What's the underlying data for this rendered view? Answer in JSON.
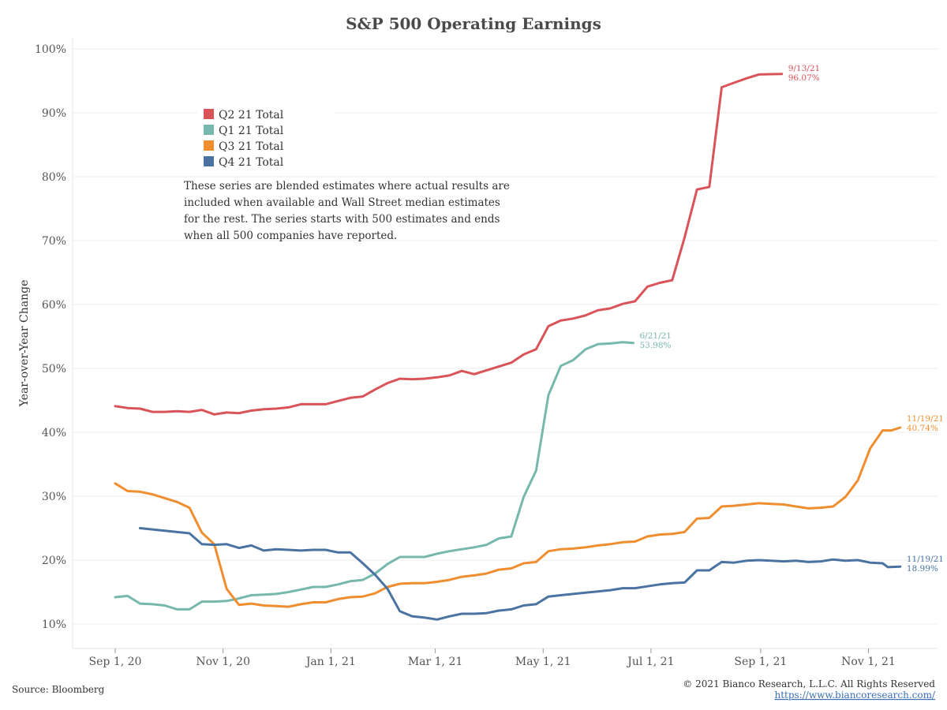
{
  "chart_data": {
    "type": "line",
    "title": "S&P 500 Operating Earnings",
    "ylabel": "Year-over-Year Change",
    "xlabel": "",
    "ylim": [
      6,
      102
    ],
    "x_ticks": [
      "Sep 1, 20",
      "Nov 1, 20",
      "Jan 1, 21",
      "Mar 1, 21",
      "May 1, 21",
      "Jul 1, 21",
      "Sep 1, 21",
      "Nov 1, 21"
    ],
    "y_ticks": [
      "10%",
      "20%",
      "30%",
      "40%",
      "50%",
      "60%",
      "70%",
      "80%",
      "90%",
      "100%"
    ],
    "grid": "horizontal",
    "legend_position": "top-left",
    "series": [
      {
        "name": "Q2 21 Total",
        "color": "#d95358",
        "end_label_date": "9/13/21",
        "end_label_value": "96.07%",
        "points": [
          [
            "2020-09-01",
            44.1
          ],
          [
            "2020-09-08",
            43.8
          ],
          [
            "2020-09-15",
            43.7
          ],
          [
            "2020-09-22",
            43.2
          ],
          [
            "2020-09-29",
            43.2
          ],
          [
            "2020-10-06",
            43.3
          ],
          [
            "2020-10-13",
            43.2
          ],
          [
            "2020-10-20",
            43.5
          ],
          [
            "2020-10-27",
            42.8
          ],
          [
            "2020-11-03",
            43.1
          ],
          [
            "2020-11-10",
            43.0
          ],
          [
            "2020-11-17",
            43.4
          ],
          [
            "2020-11-24",
            43.6
          ],
          [
            "2020-12-01",
            43.7
          ],
          [
            "2020-12-08",
            43.9
          ],
          [
            "2020-12-15",
            44.4
          ],
          [
            "2020-12-22",
            44.4
          ],
          [
            "2020-12-29",
            44.4
          ],
          [
            "2021-01-05",
            44.9
          ],
          [
            "2021-01-12",
            45.4
          ],
          [
            "2021-01-19",
            45.6
          ],
          [
            "2021-01-26",
            46.7
          ],
          [
            "2021-02-02",
            47.7
          ],
          [
            "2021-02-09",
            48.4
          ],
          [
            "2021-02-16",
            48.3
          ],
          [
            "2021-02-23",
            48.4
          ],
          [
            "2021-03-02",
            48.6
          ],
          [
            "2021-03-09",
            48.9
          ],
          [
            "2021-03-16",
            49.6
          ],
          [
            "2021-03-23",
            49.1
          ],
          [
            "2021-03-30",
            49.7
          ],
          [
            "2021-04-06",
            50.3
          ],
          [
            "2021-04-13",
            50.9
          ],
          [
            "2021-04-20",
            52.2
          ],
          [
            "2021-04-27",
            53.0
          ],
          [
            "2021-05-04",
            56.6
          ],
          [
            "2021-05-11",
            57.5
          ],
          [
            "2021-05-18",
            57.8
          ],
          [
            "2021-05-25",
            58.3
          ],
          [
            "2021-06-01",
            59.1
          ],
          [
            "2021-06-08",
            59.4
          ],
          [
            "2021-06-15",
            60.1
          ],
          [
            "2021-06-22",
            60.5
          ],
          [
            "2021-06-29",
            62.8
          ],
          [
            "2021-07-06",
            63.4
          ],
          [
            "2021-07-13",
            63.8
          ],
          [
            "2021-07-20",
            70.5
          ],
          [
            "2021-07-27",
            78.0
          ],
          [
            "2021-08-03",
            78.4
          ],
          [
            "2021-08-10",
            94.0
          ],
          [
            "2021-08-17",
            94.7
          ],
          [
            "2021-08-24",
            95.4
          ],
          [
            "2021-08-31",
            96.0
          ],
          [
            "2021-09-07",
            96.05
          ],
          [
            "2021-09-13",
            96.07
          ]
        ]
      },
      {
        "name": "Q1 21 Total",
        "color": "#76b7ae",
        "end_label_date": "6/21/21",
        "end_label_value": "53.98%",
        "points": [
          [
            "2020-09-01",
            14.2
          ],
          [
            "2020-09-08",
            14.4
          ],
          [
            "2020-09-15",
            13.2
          ],
          [
            "2020-09-22",
            13.1
          ],
          [
            "2020-09-29",
            12.9
          ],
          [
            "2020-10-06",
            12.3
          ],
          [
            "2020-10-13",
            12.3
          ],
          [
            "2020-10-20",
            13.5
          ],
          [
            "2020-10-27",
            13.5
          ],
          [
            "2020-11-03",
            13.6
          ],
          [
            "2020-11-10",
            14.0
          ],
          [
            "2020-11-17",
            14.5
          ],
          [
            "2020-11-24",
            14.6
          ],
          [
            "2020-12-01",
            14.7
          ],
          [
            "2020-12-08",
            15.0
          ],
          [
            "2020-12-15",
            15.4
          ],
          [
            "2020-12-22",
            15.8
          ],
          [
            "2020-12-29",
            15.8
          ],
          [
            "2021-01-05",
            16.2
          ],
          [
            "2021-01-12",
            16.7
          ],
          [
            "2021-01-19",
            16.9
          ],
          [
            "2021-01-26",
            17.9
          ],
          [
            "2021-02-02",
            19.4
          ],
          [
            "2021-02-09",
            20.5
          ],
          [
            "2021-02-16",
            20.5
          ],
          [
            "2021-02-23",
            20.5
          ],
          [
            "2021-03-02",
            21.0
          ],
          [
            "2021-03-09",
            21.4
          ],
          [
            "2021-03-16",
            21.7
          ],
          [
            "2021-03-23",
            22.0
          ],
          [
            "2021-03-30",
            22.4
          ],
          [
            "2021-04-06",
            23.4
          ],
          [
            "2021-04-13",
            23.7
          ],
          [
            "2021-04-20",
            29.9
          ],
          [
            "2021-04-27",
            34.0
          ],
          [
            "2021-05-04",
            45.8
          ],
          [
            "2021-05-11",
            50.4
          ],
          [
            "2021-05-18",
            51.3
          ],
          [
            "2021-05-25",
            53.0
          ],
          [
            "2021-06-01",
            53.8
          ],
          [
            "2021-06-08",
            53.9
          ],
          [
            "2021-06-15",
            54.1
          ],
          [
            "2021-06-21",
            53.98
          ]
        ]
      },
      {
        "name": "Q3 21 Total",
        "color": "#f08e2f",
        "end_label_date": "11/19/21",
        "end_label_value": "40.74%",
        "points": [
          [
            "2020-09-01",
            32.0
          ],
          [
            "2020-09-08",
            30.8
          ],
          [
            "2020-09-15",
            30.7
          ],
          [
            "2020-09-22",
            30.3
          ],
          [
            "2020-09-29",
            29.7
          ],
          [
            "2020-10-06",
            29.1
          ],
          [
            "2020-10-13",
            28.2
          ],
          [
            "2020-10-20",
            24.3
          ],
          [
            "2020-10-27",
            22.5
          ],
          [
            "2020-11-03",
            15.5
          ],
          [
            "2020-11-10",
            13.0
          ],
          [
            "2020-11-17",
            13.2
          ],
          [
            "2020-11-24",
            12.9
          ],
          [
            "2020-12-01",
            12.8
          ],
          [
            "2020-12-08",
            12.7
          ],
          [
            "2020-12-15",
            13.1
          ],
          [
            "2020-12-22",
            13.4
          ],
          [
            "2020-12-29",
            13.4
          ],
          [
            "2021-01-05",
            13.9
          ],
          [
            "2021-01-12",
            14.2
          ],
          [
            "2021-01-19",
            14.3
          ],
          [
            "2021-01-26",
            14.8
          ],
          [
            "2021-02-02",
            15.8
          ],
          [
            "2021-02-09",
            16.3
          ],
          [
            "2021-02-16",
            16.4
          ],
          [
            "2021-02-23",
            16.4
          ],
          [
            "2021-03-02",
            16.6
          ],
          [
            "2021-03-09",
            16.9
          ],
          [
            "2021-03-16",
            17.4
          ],
          [
            "2021-03-23",
            17.6
          ],
          [
            "2021-03-30",
            17.9
          ],
          [
            "2021-04-06",
            18.5
          ],
          [
            "2021-04-13",
            18.7
          ],
          [
            "2021-04-20",
            19.5
          ],
          [
            "2021-04-27",
            19.7
          ],
          [
            "2021-05-04",
            21.4
          ],
          [
            "2021-05-11",
            21.7
          ],
          [
            "2021-05-18",
            21.8
          ],
          [
            "2021-05-25",
            22.0
          ],
          [
            "2021-06-01",
            22.3
          ],
          [
            "2021-06-08",
            22.5
          ],
          [
            "2021-06-15",
            22.8
          ],
          [
            "2021-06-22",
            22.9
          ],
          [
            "2021-06-29",
            23.7
          ],
          [
            "2021-07-06",
            24.0
          ],
          [
            "2021-07-13",
            24.1
          ],
          [
            "2021-07-20",
            24.4
          ],
          [
            "2021-07-27",
            26.5
          ],
          [
            "2021-08-03",
            26.6
          ],
          [
            "2021-08-10",
            28.4
          ],
          [
            "2021-08-17",
            28.5
          ],
          [
            "2021-08-24",
            28.7
          ],
          [
            "2021-08-31",
            28.9
          ],
          [
            "2021-09-07",
            28.8
          ],
          [
            "2021-09-14",
            28.7
          ],
          [
            "2021-09-21",
            28.4
          ],
          [
            "2021-09-28",
            28.1
          ],
          [
            "2021-10-05",
            28.2
          ],
          [
            "2021-10-12",
            28.4
          ],
          [
            "2021-10-19",
            29.9
          ],
          [
            "2021-10-26",
            32.5
          ],
          [
            "2021-11-02",
            37.5
          ],
          [
            "2021-11-09",
            40.3
          ],
          [
            "2021-11-14",
            40.3
          ],
          [
            "2021-11-19",
            40.74
          ]
        ]
      },
      {
        "name": "Q4 21 Total",
        "color": "#4a73a2",
        "end_label_date": "11/19/21",
        "end_label_value": "18.99%",
        "points": [
          [
            "2020-09-15",
            25.0
          ],
          [
            "2020-09-22",
            24.8
          ],
          [
            "2020-09-29",
            24.6
          ],
          [
            "2020-10-06",
            24.4
          ],
          [
            "2020-10-13",
            24.2
          ],
          [
            "2020-10-20",
            22.5
          ],
          [
            "2020-10-27",
            22.4
          ],
          [
            "2020-11-03",
            22.5
          ],
          [
            "2020-11-10",
            21.9
          ],
          [
            "2020-11-17",
            22.3
          ],
          [
            "2020-11-24",
            21.5
          ],
          [
            "2020-12-01",
            21.7
          ],
          [
            "2020-12-08",
            21.6
          ],
          [
            "2020-12-15",
            21.5
          ],
          [
            "2020-12-22",
            21.6
          ],
          [
            "2020-12-29",
            21.6
          ],
          [
            "2021-01-05",
            21.2
          ],
          [
            "2021-01-12",
            21.2
          ],
          [
            "2021-01-19",
            19.5
          ],
          [
            "2021-01-26",
            17.7
          ],
          [
            "2021-02-02",
            15.5
          ],
          [
            "2021-02-09",
            12.0
          ],
          [
            "2021-02-16",
            11.2
          ],
          [
            "2021-02-23",
            11.0
          ],
          [
            "2021-03-02",
            10.7
          ],
          [
            "2021-03-09",
            11.2
          ],
          [
            "2021-03-16",
            11.6
          ],
          [
            "2021-03-23",
            11.6
          ],
          [
            "2021-03-30",
            11.7
          ],
          [
            "2021-04-06",
            12.1
          ],
          [
            "2021-04-13",
            12.3
          ],
          [
            "2021-04-20",
            12.9
          ],
          [
            "2021-04-27",
            13.1
          ],
          [
            "2021-05-04",
            14.3
          ],
          [
            "2021-05-11",
            14.5
          ],
          [
            "2021-05-18",
            14.7
          ],
          [
            "2021-05-25",
            14.9
          ],
          [
            "2021-06-01",
            15.1
          ],
          [
            "2021-06-08",
            15.3
          ],
          [
            "2021-06-15",
            15.6
          ],
          [
            "2021-06-22",
            15.6
          ],
          [
            "2021-06-29",
            15.9
          ],
          [
            "2021-07-06",
            16.2
          ],
          [
            "2021-07-13",
            16.4
          ],
          [
            "2021-07-20",
            16.5
          ],
          [
            "2021-07-27",
            18.4
          ],
          [
            "2021-08-03",
            18.4
          ],
          [
            "2021-08-10",
            19.7
          ],
          [
            "2021-08-17",
            19.6
          ],
          [
            "2021-08-24",
            19.9
          ],
          [
            "2021-08-31",
            20.0
          ],
          [
            "2021-09-07",
            19.9
          ],
          [
            "2021-09-14",
            19.8
          ],
          [
            "2021-09-21",
            19.9
          ],
          [
            "2021-09-28",
            19.7
          ],
          [
            "2021-10-05",
            19.8
          ],
          [
            "2021-10-12",
            20.1
          ],
          [
            "2021-10-19",
            19.9
          ],
          [
            "2021-10-26",
            20.0
          ],
          [
            "2021-11-02",
            19.6
          ],
          [
            "2021-11-09",
            19.5
          ],
          [
            "2021-11-12",
            18.9
          ],
          [
            "2021-11-19",
            18.99
          ]
        ]
      }
    ],
    "annotation": "These series are blended estimates where actual results are included when available and Wall Street median estimates for the rest.  The series starts with 500 estimates and ends when all 500 companies have reported."
  },
  "footer": {
    "source": "Source: Bloomberg",
    "copyright": "© 2021 Bianco Research, L.L.C. All Rights Reserved",
    "url": "https://www.biancoresearch.com/"
  }
}
